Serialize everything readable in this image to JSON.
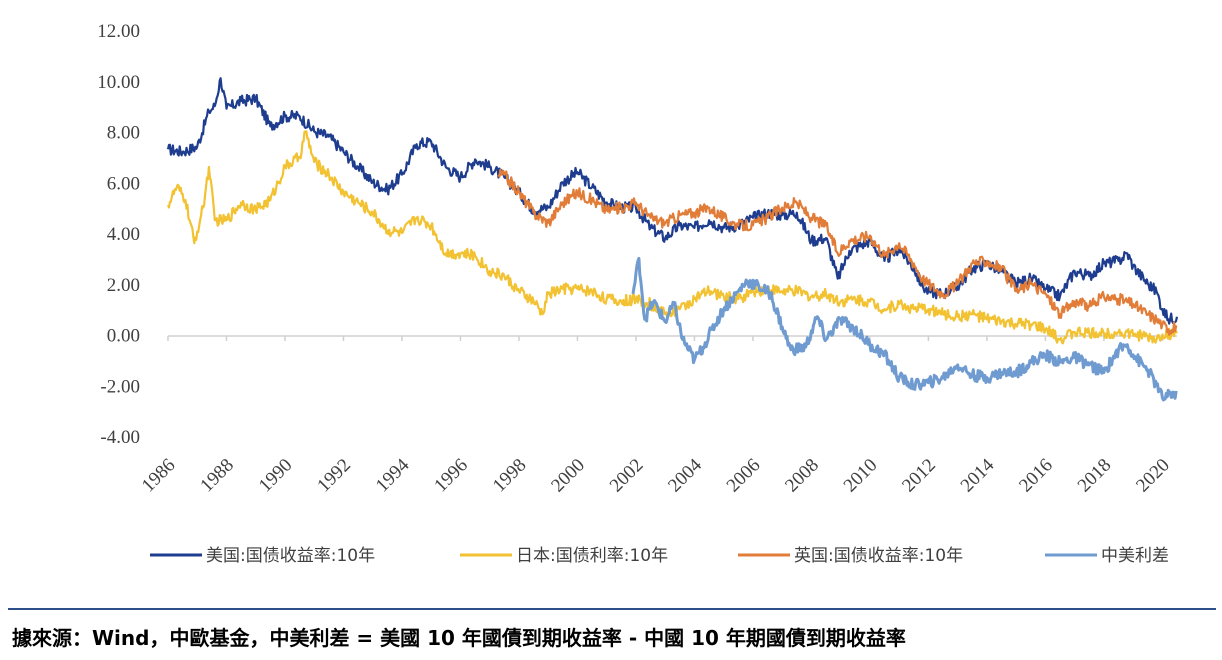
{
  "chart_data": {
    "type": "line",
    "y_ticks": [
      "12.00",
      "10.00",
      "8.00",
      "6.00",
      "4.00",
      "2.00",
      "0.00",
      "-2.00",
      "-4.00"
    ],
    "ylim": [
      -4,
      12
    ],
    "negative_tick_color": "#e3251b",
    "x_ticks": [
      "1986",
      "1988",
      "1990",
      "1992",
      "1994",
      "1996",
      "1998",
      "2000",
      "2002",
      "2004",
      "2006",
      "2008",
      "2010",
      "2012",
      "2014",
      "2016",
      "2018",
      "2020"
    ],
    "xlim": [
      1986,
      2020.5
    ],
    "grid": false,
    "legend_position": "bottom",
    "series": [
      {
        "name": "美国:国债收益率:10年",
        "color": "#1f3d8f",
        "points": [
          [
            1986,
            7.3
          ],
          [
            1986.5,
            7.2
          ],
          [
            1987,
            7.4
          ],
          [
            1987.4,
            8.8
          ],
          [
            1987.6,
            9.0
          ],
          [
            1987.8,
            10.1
          ],
          [
            1988,
            8.9
          ],
          [
            1988.5,
            9.2
          ],
          [
            1989,
            9.3
          ],
          [
            1989.5,
            8.2
          ],
          [
            1990,
            8.6
          ],
          [
            1990.5,
            8.6
          ],
          [
            1991,
            8.0
          ],
          [
            1991.5,
            7.8
          ],
          [
            1992,
            7.2
          ],
          [
            1992.5,
            6.6
          ],
          [
            1993,
            6.0
          ],
          [
            1993.5,
            5.7
          ],
          [
            1994,
            6.3
          ],
          [
            1994.5,
            7.5
          ],
          [
            1995,
            7.6
          ],
          [
            1995.5,
            6.6
          ],
          [
            1996,
            6.2
          ],
          [
            1996.5,
            6.9
          ],
          [
            1997,
            6.6
          ],
          [
            1997.5,
            6.2
          ],
          [
            1998,
            5.6
          ],
          [
            1998.5,
            4.9
          ],
          [
            1999,
            5.0
          ],
          [
            1999.5,
            6.0
          ],
          [
            2000,
            6.4
          ],
          [
            2000.5,
            5.8
          ],
          [
            2001,
            5.2
          ],
          [
            2001.5,
            5.0
          ],
          [
            2002,
            5.0
          ],
          [
            2002.5,
            4.2
          ],
          [
            2003,
            3.8
          ],
          [
            2003.5,
            4.3
          ],
          [
            2004,
            4.2
          ],
          [
            2004.5,
            4.5
          ],
          [
            2005,
            4.2
          ],
          [
            2005.5,
            4.3
          ],
          [
            2006,
            4.6
          ],
          [
            2006.5,
            4.8
          ],
          [
            2007,
            4.7
          ],
          [
            2007.5,
            4.8
          ],
          [
            2008,
            3.7
          ],
          [
            2008.5,
            3.8
          ],
          [
            2008.9,
            2.2
          ],
          [
            2009.3,
            3.3
          ],
          [
            2010,
            3.7
          ],
          [
            2010.5,
            2.9
          ],
          [
            2011,
            3.4
          ],
          [
            2011.5,
            2.6
          ],
          [
            2011.8,
            1.9
          ],
          [
            2012,
            1.7
          ],
          [
            2012.5,
            1.6
          ],
          [
            2013,
            1.9
          ],
          [
            2013.5,
            2.6
          ],
          [
            2014,
            2.8
          ],
          [
            2014.5,
            2.5
          ],
          [
            2015,
            2.0
          ],
          [
            2015.5,
            2.2
          ],
          [
            2016,
            1.8
          ],
          [
            2016.5,
            1.5
          ],
          [
            2017,
            2.5
          ],
          [
            2017.5,
            2.3
          ],
          [
            2018,
            2.8
          ],
          [
            2018.5,
            2.9
          ],
          [
            2018.8,
            3.2
          ],
          [
            2019,
            2.7
          ],
          [
            2019.5,
            2.0
          ],
          [
            2019.8,
            1.7
          ],
          [
            2020,
            1.0
          ],
          [
            2020.2,
            0.6
          ],
          [
            2020.5,
            0.7
          ]
        ]
      },
      {
        "name": "日本:国债利率:10年",
        "color": "#f2c232",
        "points": [
          [
            1986,
            5.1
          ],
          [
            1986.3,
            5.8
          ],
          [
            1986.6,
            5.3
          ],
          [
            1986.9,
            3.6
          ],
          [
            1987.2,
            5.0
          ],
          [
            1987.4,
            6.6
          ],
          [
            1987.6,
            4.5
          ],
          [
            1988,
            4.5
          ],
          [
            1988.5,
            5.2
          ],
          [
            1989,
            4.9
          ],
          [
            1989.5,
            5.3
          ],
          [
            1990,
            6.6
          ],
          [
            1990.5,
            7.0
          ],
          [
            1990.7,
            8.0
          ],
          [
            1991,
            6.8
          ],
          [
            1991.5,
            6.3
          ],
          [
            1992,
            5.6
          ],
          [
            1992.5,
            5.2
          ],
          [
            1993,
            4.8
          ],
          [
            1993.5,
            4.1
          ],
          [
            1994,
            4.0
          ],
          [
            1994.5,
            4.6
          ],
          [
            1995,
            4.3
          ],
          [
            1995.5,
            3.2
          ],
          [
            1996,
            3.2
          ],
          [
            1996.5,
            3.1
          ],
          [
            1997,
            2.5
          ],
          [
            1997.5,
            2.3
          ],
          [
            1998,
            1.7
          ],
          [
            1998.5,
            1.3
          ],
          [
            1998.8,
            0.8
          ],
          [
            1999,
            1.6
          ],
          [
            1999.5,
            1.8
          ],
          [
            2000,
            1.8
          ],
          [
            2000.5,
            1.7
          ],
          [
            2001,
            1.4
          ],
          [
            2001.5,
            1.3
          ],
          [
            2002,
            1.4
          ],
          [
            2002.5,
            1.2
          ],
          [
            2003,
            0.8
          ],
          [
            2003.5,
            1.0
          ],
          [
            2004,
            1.4
          ],
          [
            2004.5,
            1.7
          ],
          [
            2005,
            1.5
          ],
          [
            2005.5,
            1.4
          ],
          [
            2006,
            1.7
          ],
          [
            2006.5,
            1.8
          ],
          [
            2007,
            1.7
          ],
          [
            2007.5,
            1.7
          ],
          [
            2008,
            1.5
          ],
          [
            2008.5,
            1.6
          ],
          [
            2009,
            1.3
          ],
          [
            2009.5,
            1.4
          ],
          [
            2010,
            1.3
          ],
          [
            2010.5,
            1.0
          ],
          [
            2011,
            1.2
          ],
          [
            2011.5,
            1.0
          ],
          [
            2012,
            1.0
          ],
          [
            2012.5,
            0.8
          ],
          [
            2013,
            0.7
          ],
          [
            2013.5,
            0.8
          ],
          [
            2014,
            0.6
          ],
          [
            2014.5,
            0.5
          ],
          [
            2015,
            0.4
          ],
          [
            2015.5,
            0.4
          ],
          [
            2016,
            0.2
          ],
          [
            2016.5,
            -0.2
          ],
          [
            2017,
            0.1
          ],
          [
            2017.5,
            0.05
          ],
          [
            2018,
            0.05
          ],
          [
            2018.5,
            0.1
          ],
          [
            2019,
            0.0
          ],
          [
            2019.5,
            -0.1
          ],
          [
            2019.8,
            -0.2
          ],
          [
            2020,
            0.0
          ],
          [
            2020.5,
            0.05
          ]
        ]
      },
      {
        "name": "英国:国债收益率:10年",
        "color": "#e17d38",
        "points": [
          [
            1997.3,
            6.3
          ],
          [
            1997.5,
            6.3
          ],
          [
            1998,
            5.6
          ],
          [
            1998.5,
            4.8
          ],
          [
            1999,
            4.4
          ],
          [
            1999.5,
            5.2
          ],
          [
            2000,
            5.6
          ],
          [
            2000.5,
            5.3
          ],
          [
            2001,
            4.9
          ],
          [
            2001.5,
            5.0
          ],
          [
            2002,
            5.2
          ],
          [
            2002.5,
            4.6
          ],
          [
            2003,
            4.4
          ],
          [
            2003.5,
            4.7
          ],
          [
            2004,
            4.8
          ],
          [
            2004.5,
            5.0
          ],
          [
            2005,
            4.6
          ],
          [
            2005.5,
            4.3
          ],
          [
            2006,
            4.3
          ],
          [
            2006.5,
            4.6
          ],
          [
            2007,
            5.0
          ],
          [
            2007.5,
            5.2
          ],
          [
            2008,
            4.6
          ],
          [
            2008.5,
            4.3
          ],
          [
            2008.9,
            3.2
          ],
          [
            2009.3,
            3.7
          ],
          [
            2010,
            3.9
          ],
          [
            2010.5,
            3.1
          ],
          [
            2011,
            3.6
          ],
          [
            2011.5,
            2.8
          ],
          [
            2011.8,
            2.2
          ],
          [
            2012,
            2.0
          ],
          [
            2012.5,
            1.6
          ],
          [
            2013,
            2.0
          ],
          [
            2013.5,
            2.8
          ],
          [
            2014,
            2.9
          ],
          [
            2014.5,
            2.6
          ],
          [
            2015,
            1.7
          ],
          [
            2015.5,
            2.0
          ],
          [
            2016,
            1.6
          ],
          [
            2016.5,
            0.8
          ],
          [
            2017,
            1.3
          ],
          [
            2017.5,
            1.1
          ],
          [
            2018,
            1.5
          ],
          [
            2018.5,
            1.4
          ],
          [
            2019,
            1.2
          ],
          [
            2019.5,
            0.8
          ],
          [
            2019.8,
            0.6
          ],
          [
            2020,
            0.4
          ],
          [
            2020.2,
            0.2
          ],
          [
            2020.5,
            0.3
          ]
        ]
      },
      {
        "name": "中美利差",
        "color": "#6f9bd1",
        "points": [
          [
            2001.9,
            1.6
          ],
          [
            2002.1,
            3.0
          ],
          [
            2002.3,
            0.6
          ],
          [
            2002.6,
            1.3
          ],
          [
            2003,
            0.5
          ],
          [
            2003.3,
            1.2
          ],
          [
            2003.6,
            -0.2
          ],
          [
            2004,
            -1.0
          ],
          [
            2004.3,
            -0.5
          ],
          [
            2004.6,
            0.2
          ],
          [
            2005,
            1.0
          ],
          [
            2005.5,
            1.7
          ],
          [
            2005.8,
            2.1
          ],
          [
            2006.2,
            1.9
          ],
          [
            2006.6,
            1.6
          ],
          [
            2007,
            0.3
          ],
          [
            2007.3,
            -0.6
          ],
          [
            2007.8,
            -0.5
          ],
          [
            2008.2,
            0.7
          ],
          [
            2008.5,
            -0.2
          ],
          [
            2009,
            0.6
          ],
          [
            2009.5,
            0.2
          ],
          [
            2010,
            -0.4
          ],
          [
            2010.5,
            -0.8
          ],
          [
            2011,
            -1.7
          ],
          [
            2011.5,
            -2.0
          ],
          [
            2012,
            -1.9
          ],
          [
            2012.5,
            -1.7
          ],
          [
            2013,
            -1.2
          ],
          [
            2013.5,
            -1.6
          ],
          [
            2014,
            -1.7
          ],
          [
            2014.5,
            -1.5
          ],
          [
            2015,
            -1.5
          ],
          [
            2015.5,
            -1.1
          ],
          [
            2016,
            -0.8
          ],
          [
            2016.5,
            -1.1
          ],
          [
            2017,
            -0.9
          ],
          [
            2017.5,
            -1.2
          ],
          [
            2018,
            -1.5
          ],
          [
            2018.5,
            -0.6
          ],
          [
            2018.8,
            -0.4
          ],
          [
            2019,
            -0.8
          ],
          [
            2019.5,
            -1.4
          ],
          [
            2019.8,
            -2.0
          ],
          [
            2020,
            -2.5
          ],
          [
            2020.5,
            -2.3
          ]
        ]
      }
    ]
  },
  "footer": {
    "source": "據來源：Wind，中歐基金，中美利差 = 美國 10 年國債到期收益率 - 中國 10 年期國債到期收益率"
  }
}
